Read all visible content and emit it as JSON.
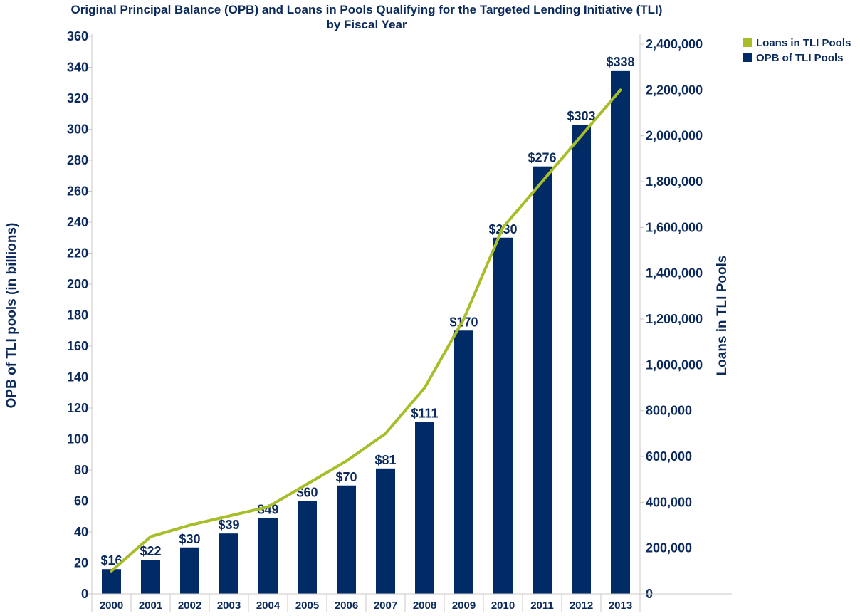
{
  "chart_data": {
    "type": "bar",
    "title": "Original Principal Balance (OPB) and Loans in Pools Qualifying for the Targeted Lending Initiative (TLI)",
    "subtitle": "by Fiscal Year",
    "xlabel": "",
    "ylabel_left": "OPB of TLI pools (in billions)",
    "ylabel_right": "Loans in TLI Pools",
    "categories": [
      "2000",
      "2001",
      "2002",
      "2003",
      "2004",
      "2005",
      "2006",
      "2007",
      "2008",
      "2009",
      "2010",
      "2011",
      "2012",
      "2013"
    ],
    "ylim_left": [
      0,
      360
    ],
    "ylim_right": [
      0,
      2400000
    ],
    "left_ticks": [
      0,
      20,
      40,
      60,
      80,
      100,
      120,
      140,
      160,
      180,
      200,
      220,
      240,
      260,
      280,
      300,
      320,
      340,
      360
    ],
    "right_ticks": [
      0,
      200000,
      400000,
      600000,
      800000,
      1000000,
      1200000,
      1400000,
      1600000,
      1800000,
      2000000,
      2200000,
      2400000
    ],
    "right_tick_labels": [
      "0",
      "200,000",
      "400,000",
      "600,000",
      "800,000",
      "1,000,000",
      "1,200,000",
      "1,400,000",
      "1,600,000",
      "1,800,000",
      "2,000,000",
      "2,200,000",
      "2,400,000"
    ],
    "legend_position": "top-right",
    "series": [
      {
        "name": "OPB of TLI Pools",
        "type": "bar",
        "axis": "left",
        "color": "#002b66",
        "values": [
          16,
          22,
          30,
          39,
          49,
          60,
          70,
          81,
          111,
          170,
          230,
          276,
          303,
          338
        ],
        "labels": [
          "$16",
          "$22",
          "$30",
          "$39",
          "$49",
          "$60",
          "$70",
          "$81",
          "$111",
          "$170",
          "$230",
          "$276",
          "$303",
          "$338"
        ]
      },
      {
        "name": "Loans in TLI Pools",
        "type": "line",
        "axis": "right",
        "color": "#a8bd28",
        "values": [
          100000,
          250000,
          300000,
          340000,
          380000,
          480000,
          580000,
          700000,
          900000,
          1200000,
          1600000,
          1800000,
          2000000,
          2200000
        ]
      }
    ],
    "grid": false
  }
}
